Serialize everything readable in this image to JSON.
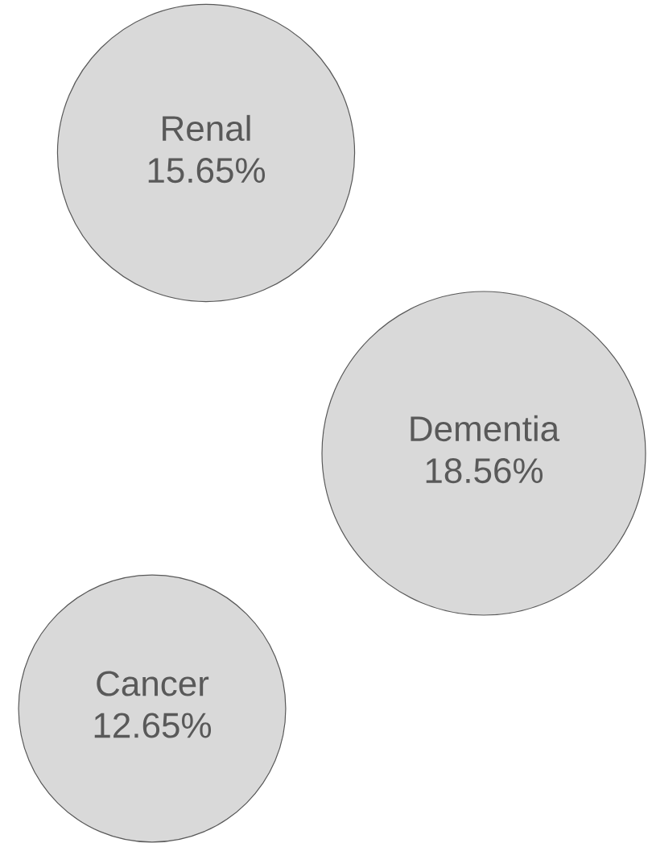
{
  "chart_data": {
    "type": "other",
    "categories": [
      "Renal",
      "Dementia",
      "Cancer"
    ],
    "values": [
      15.65,
      18.56,
      12.65
    ],
    "value_labels": [
      "15.65%",
      "18.56%",
      "12.65%"
    ],
    "color": "#d9d9d9"
  }
}
